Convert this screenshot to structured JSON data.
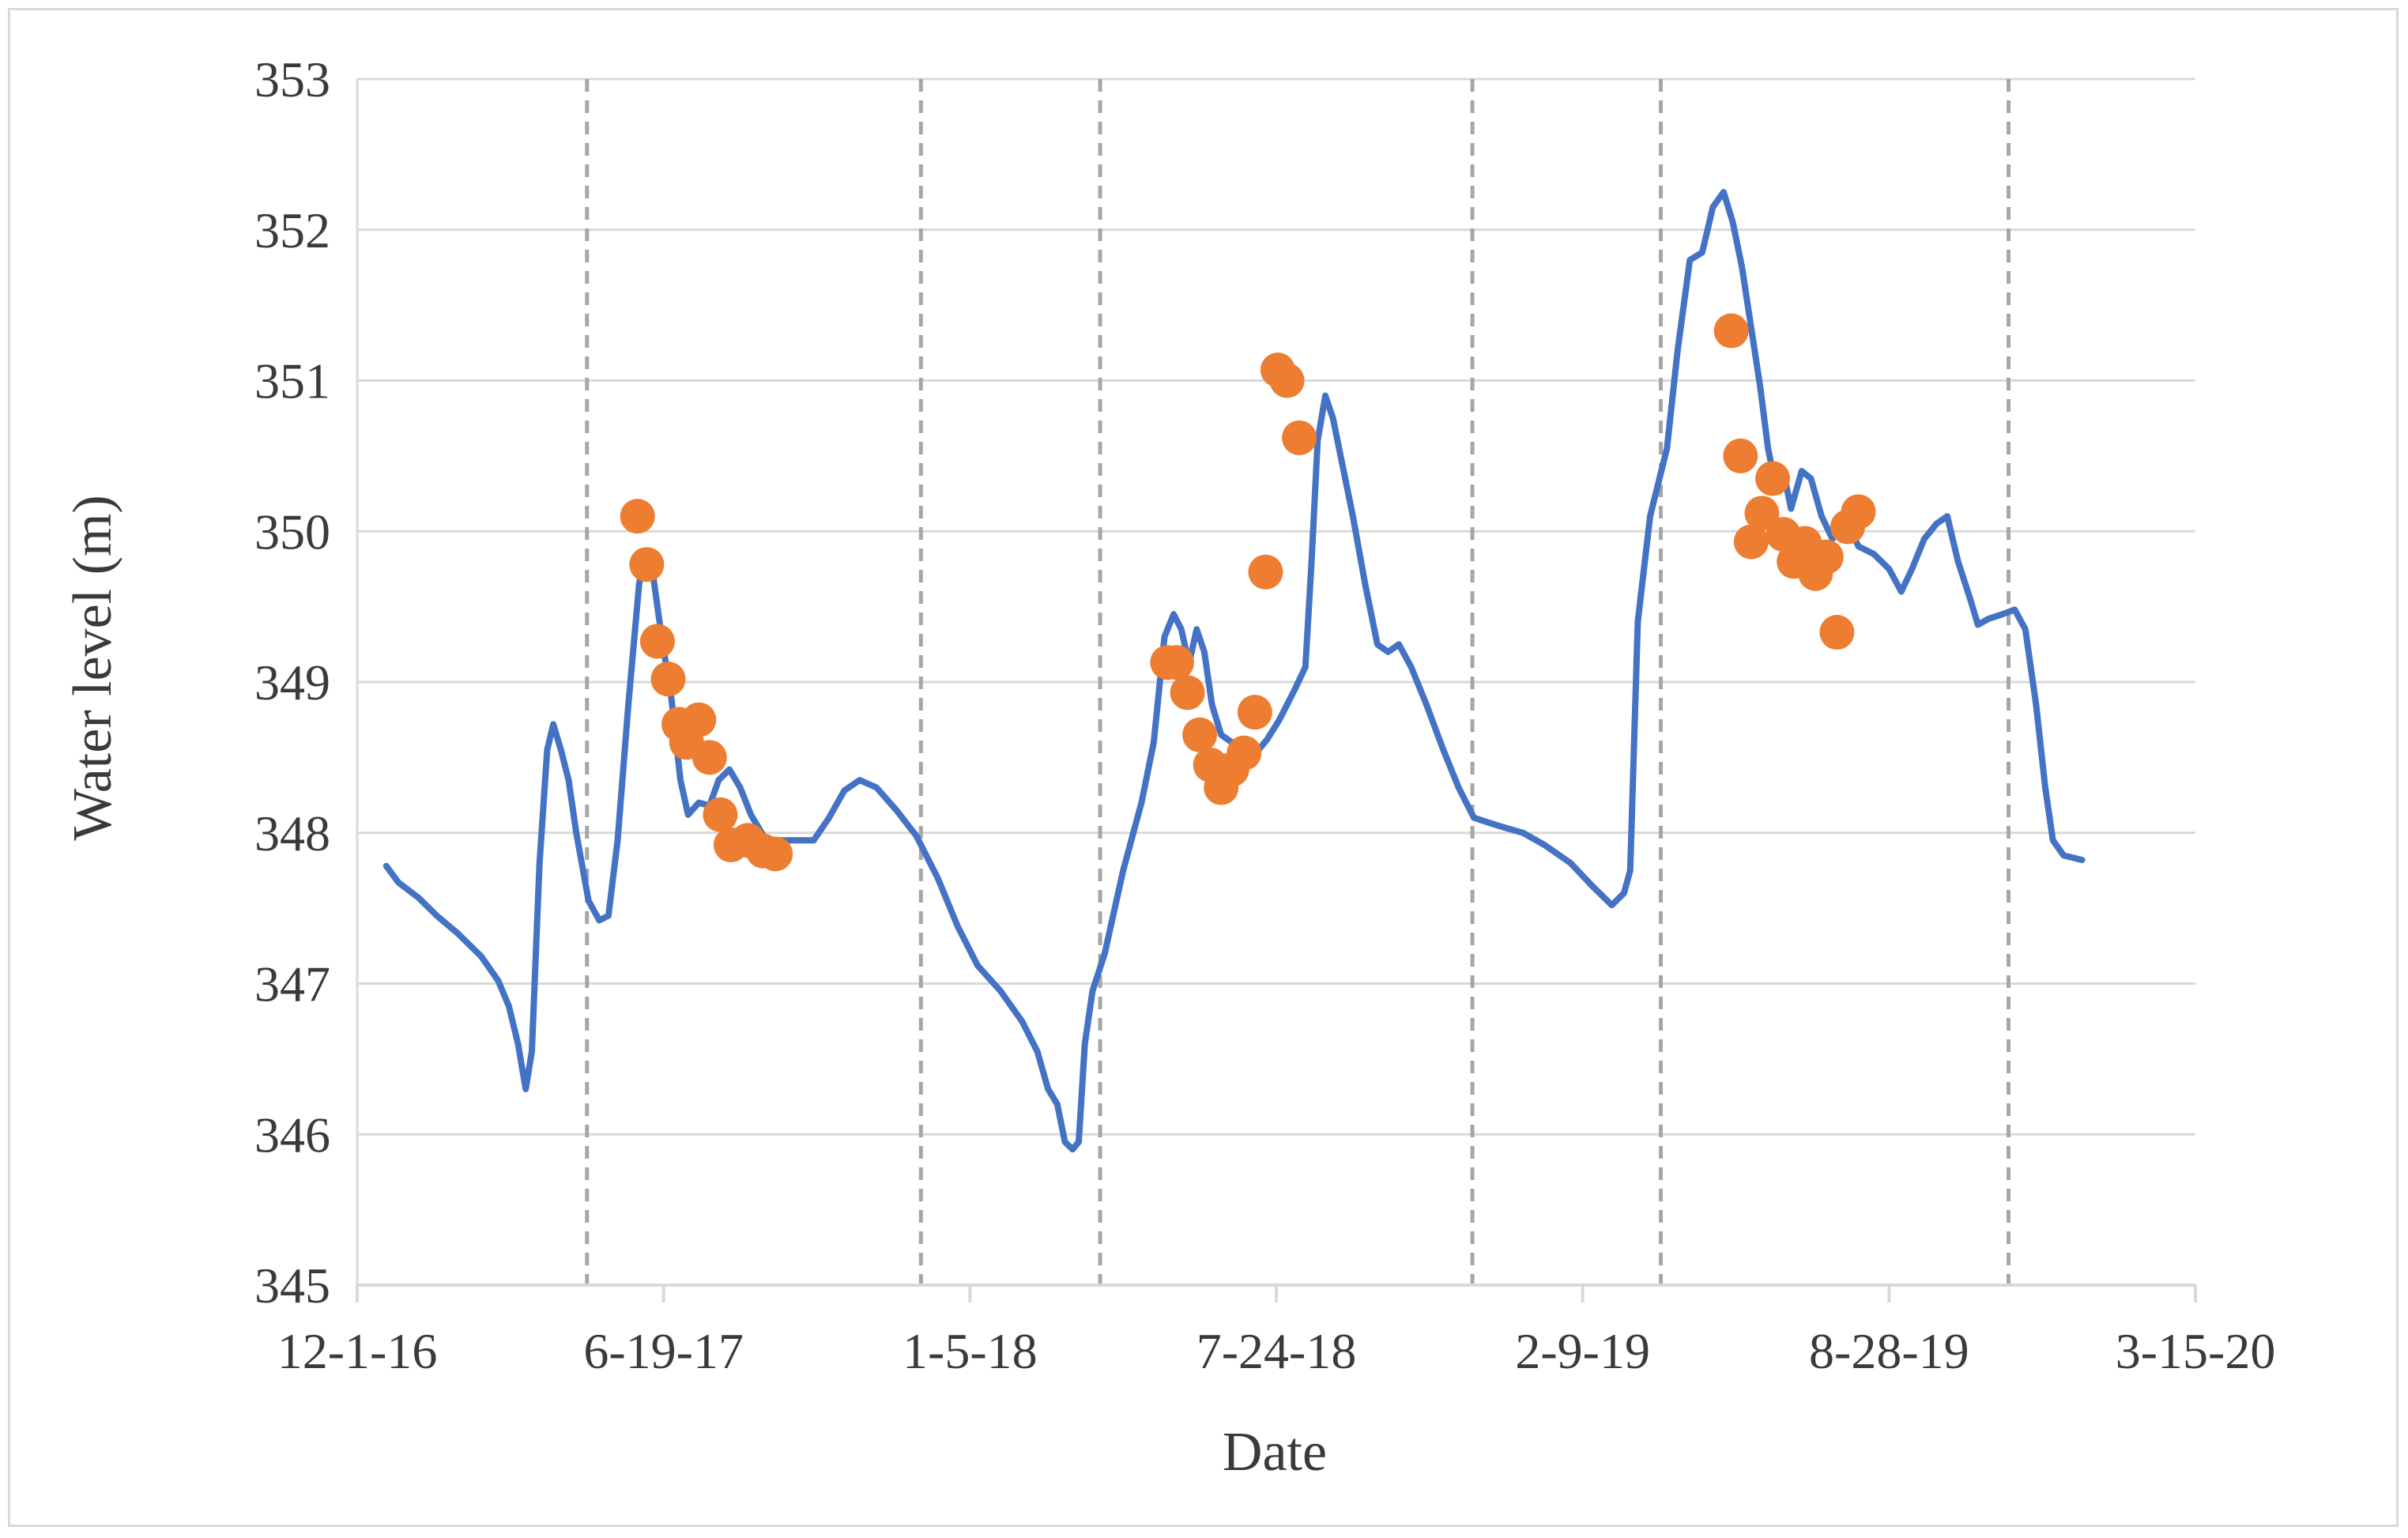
{
  "chart_data": {
    "type": "line",
    "title": "",
    "xlabel": "Date",
    "ylabel": "Water level (m)",
    "x_axis": {
      "min": "2016-12-01",
      "max": "2020-03-15",
      "ticks": [
        "2016-12-01",
        "2017-06-19",
        "2018-01-05",
        "2018-07-24",
        "2019-02-09",
        "2019-08-28",
        "2020-03-15"
      ],
      "tick_labels": [
        "12-1-16",
        "6-19-17",
        "1-5-18",
        "7-24-18",
        "2-9-19",
        "8-28-19",
        "3-15-20"
      ]
    },
    "ylim": [
      345,
      353
    ],
    "yticks": [
      345,
      346,
      347,
      348,
      349,
      350,
      351,
      352,
      353
    ],
    "grid": true,
    "legend": "none",
    "colors": {
      "line": "#4472c4",
      "points": "#ed7d31",
      "reference_lines": "#a6a6a6",
      "grid": "#d9d9d9"
    },
    "reference_lines_x": [
      "2017-04-30",
      "2017-12-04",
      "2018-03-31",
      "2018-11-29",
      "2019-04-01",
      "2019-11-14"
    ],
    "series": [
      {
        "type": "line",
        "points": [
          [
            "2016-12-20",
            347.78
          ],
          [
            "2016-12-28",
            347.67
          ],
          [
            "2017-01-10",
            347.57
          ],
          [
            "2017-01-22",
            347.45
          ],
          [
            "2017-02-05",
            347.33
          ],
          [
            "2017-02-20",
            347.18
          ],
          [
            "2017-03-03",
            347.02
          ],
          [
            "2017-03-10",
            346.85
          ],
          [
            "2017-03-16",
            346.6
          ],
          [
            "2017-03-21",
            346.3
          ],
          [
            "2017-03-25",
            346.55
          ],
          [
            "2017-03-30",
            347.8
          ],
          [
            "2017-04-04",
            348.55
          ],
          [
            "2017-04-08",
            348.72
          ],
          [
            "2017-04-13",
            348.55
          ],
          [
            "2017-04-18",
            348.35
          ],
          [
            "2017-04-23",
            348.0
          ],
          [
            "2017-05-01",
            347.55
          ],
          [
            "2017-05-08",
            347.42
          ],
          [
            "2017-05-14",
            347.45
          ],
          [
            "2017-05-20",
            347.95
          ],
          [
            "2017-05-27",
            348.85
          ],
          [
            "2017-06-03",
            349.65
          ],
          [
            "2017-06-07",
            349.85
          ],
          [
            "2017-06-12",
            349.72
          ],
          [
            "2017-06-18",
            349.28
          ],
          [
            "2017-06-24",
            348.9
          ],
          [
            "2017-06-30",
            348.35
          ],
          [
            "2017-07-05",
            348.12
          ],
          [
            "2017-07-12",
            348.2
          ],
          [
            "2017-07-19",
            348.18
          ],
          [
            "2017-07-25",
            348.35
          ],
          [
            "2017-08-01",
            348.42
          ],
          [
            "2017-08-08",
            348.3
          ],
          [
            "2017-08-15",
            348.12
          ],
          [
            "2017-08-25",
            347.95
          ],
          [
            "2017-09-10",
            347.95
          ],
          [
            "2017-09-25",
            347.95
          ],
          [
            "2017-10-05",
            348.1
          ],
          [
            "2017-10-15",
            348.28
          ],
          [
            "2017-10-25",
            348.35
          ],
          [
            "2017-11-05",
            348.3
          ],
          [
            "2017-11-18",
            348.15
          ],
          [
            "2017-12-01",
            347.98
          ],
          [
            "2017-12-15",
            347.7
          ],
          [
            "2017-12-28",
            347.38
          ],
          [
            "2018-01-10",
            347.12
          ],
          [
            "2018-01-25",
            346.95
          ],
          [
            "2018-02-08",
            346.75
          ],
          [
            "2018-02-18",
            346.55
          ],
          [
            "2018-02-25",
            346.3
          ],
          [
            "2018-03-03",
            346.2
          ],
          [
            "2018-03-08",
            345.95
          ],
          [
            "2018-03-13",
            345.9
          ],
          [
            "2018-03-17",
            345.95
          ],
          [
            "2018-03-21",
            346.6
          ],
          [
            "2018-03-26",
            346.95
          ],
          [
            "2018-04-03",
            347.2
          ],
          [
            "2018-04-15",
            347.75
          ],
          [
            "2018-04-27",
            348.2
          ],
          [
            "2018-05-05",
            348.6
          ],
          [
            "2018-05-12",
            349.3
          ],
          [
            "2018-05-18",
            349.45
          ],
          [
            "2018-05-23",
            349.35
          ],
          [
            "2018-05-28",
            349.12
          ],
          [
            "2018-06-02",
            349.35
          ],
          [
            "2018-06-07",
            349.2
          ],
          [
            "2018-06-12",
            348.85
          ],
          [
            "2018-06-18",
            348.65
          ],
          [
            "2018-06-25",
            348.6
          ],
          [
            "2018-07-02",
            348.58
          ],
          [
            "2018-07-10",
            348.52
          ],
          [
            "2018-07-18",
            348.62
          ],
          [
            "2018-07-26",
            348.75
          ],
          [
            "2018-08-05",
            348.95
          ],
          [
            "2018-08-12",
            349.1
          ],
          [
            "2018-08-16",
            349.8
          ],
          [
            "2018-08-20",
            350.6
          ],
          [
            "2018-08-25",
            350.9
          ],
          [
            "2018-08-30",
            350.75
          ],
          [
            "2018-09-05",
            350.45
          ],
          [
            "2018-09-12",
            350.1
          ],
          [
            "2018-09-20",
            349.65
          ],
          [
            "2018-09-28",
            349.25
          ],
          [
            "2018-10-05",
            349.2
          ],
          [
            "2018-10-12",
            349.25
          ],
          [
            "2018-10-20",
            349.1
          ],
          [
            "2018-10-30",
            348.85
          ],
          [
            "2018-11-10",
            348.55
          ],
          [
            "2018-11-20",
            348.3
          ],
          [
            "2018-11-30",
            348.1
          ],
          [
            "2018-12-15",
            348.05
          ],
          [
            "2019-01-01",
            348.0
          ],
          [
            "2019-01-15",
            347.92
          ],
          [
            "2019-02-01",
            347.8
          ],
          [
            "2019-02-15",
            347.65
          ],
          [
            "2019-02-28",
            347.52
          ],
          [
            "2019-03-08",
            347.6
          ],
          [
            "2019-03-12",
            347.75
          ],
          [
            "2019-03-17",
            349.4
          ],
          [
            "2019-03-25",
            350.1
          ],
          [
            "2019-04-05",
            350.55
          ],
          [
            "2019-04-12",
            351.2
          ],
          [
            "2019-04-20",
            351.8
          ],
          [
            "2019-04-28",
            351.85
          ],
          [
            "2019-05-05",
            352.15
          ],
          [
            "2019-05-12",
            352.25
          ],
          [
            "2019-05-18",
            352.05
          ],
          [
            "2019-05-24",
            351.75
          ],
          [
            "2019-05-30",
            351.35
          ],
          [
            "2019-06-05",
            350.95
          ],
          [
            "2019-06-10",
            350.55
          ],
          [
            "2019-06-15",
            350.3
          ],
          [
            "2019-06-20",
            350.4
          ],
          [
            "2019-06-25",
            350.15
          ],
          [
            "2019-07-02",
            350.4
          ],
          [
            "2019-07-08",
            350.35
          ],
          [
            "2019-07-15",
            350.1
          ],
          [
            "2019-07-22",
            349.95
          ],
          [
            "2019-07-30",
            350.1
          ],
          [
            "2019-08-08",
            349.9
          ],
          [
            "2019-08-18",
            349.85
          ],
          [
            "2019-08-28",
            349.75
          ],
          [
            "2019-09-05",
            349.6
          ],
          [
            "2019-09-12",
            349.75
          ],
          [
            "2019-09-20",
            349.95
          ],
          [
            "2019-09-28",
            350.05
          ],
          [
            "2019-10-05",
            350.1
          ],
          [
            "2019-10-12",
            349.8
          ],
          [
            "2019-10-20",
            349.55
          ],
          [
            "2019-10-25",
            349.38
          ],
          [
            "2019-11-01",
            349.42
          ],
          [
            "2019-11-10",
            349.45
          ],
          [
            "2019-11-18",
            349.48
          ],
          [
            "2019-11-25",
            349.35
          ],
          [
            "2019-12-02",
            348.85
          ],
          [
            "2019-12-08",
            348.3
          ],
          [
            "2019-12-13",
            347.95
          ],
          [
            "2019-12-20",
            347.85
          ],
          [
            "2020-01-01",
            347.82
          ]
        ]
      },
      {
        "type": "scatter",
        "points": [
          [
            "2017-06-02",
            350.1
          ],
          [
            "2017-06-08",
            349.78
          ],
          [
            "2017-06-15",
            349.27
          ],
          [
            "2017-06-22",
            349.02
          ],
          [
            "2017-06-29",
            348.72
          ],
          [
            "2017-07-04",
            348.6
          ],
          [
            "2017-07-12",
            348.75
          ],
          [
            "2017-07-19",
            348.5
          ],
          [
            "2017-07-26",
            348.12
          ],
          [
            "2017-08-02",
            347.92
          ],
          [
            "2017-08-13",
            347.95
          ],
          [
            "2017-08-23",
            347.88
          ],
          [
            "2017-08-31",
            347.86
          ],
          [
            "2018-05-14",
            349.13
          ],
          [
            "2018-05-20",
            349.13
          ],
          [
            "2018-05-27",
            348.93
          ],
          [
            "2018-06-04",
            348.65
          ],
          [
            "2018-06-11",
            348.45
          ],
          [
            "2018-06-18",
            348.3
          ],
          [
            "2018-06-25",
            348.42
          ],
          [
            "2018-07-03",
            348.53
          ],
          [
            "2018-07-10",
            348.8
          ],
          [
            "2018-07-17",
            349.73
          ],
          [
            "2018-07-25",
            351.07
          ],
          [
            "2018-07-31",
            351.0
          ],
          [
            "2018-08-08",
            350.62
          ],
          [
            "2019-05-17",
            351.33
          ],
          [
            "2019-05-23",
            350.5
          ],
          [
            "2019-05-30",
            349.93
          ],
          [
            "2019-06-06",
            350.12
          ],
          [
            "2019-06-13",
            350.35
          ],
          [
            "2019-06-20",
            349.98
          ],
          [
            "2019-06-27",
            349.8
          ],
          [
            "2019-07-04",
            349.92
          ],
          [
            "2019-07-11",
            349.72
          ],
          [
            "2019-07-18",
            349.83
          ],
          [
            "2019-07-25",
            349.33
          ],
          [
            "2019-08-01",
            350.03
          ],
          [
            "2019-08-08",
            350.13
          ]
        ]
      }
    ]
  }
}
